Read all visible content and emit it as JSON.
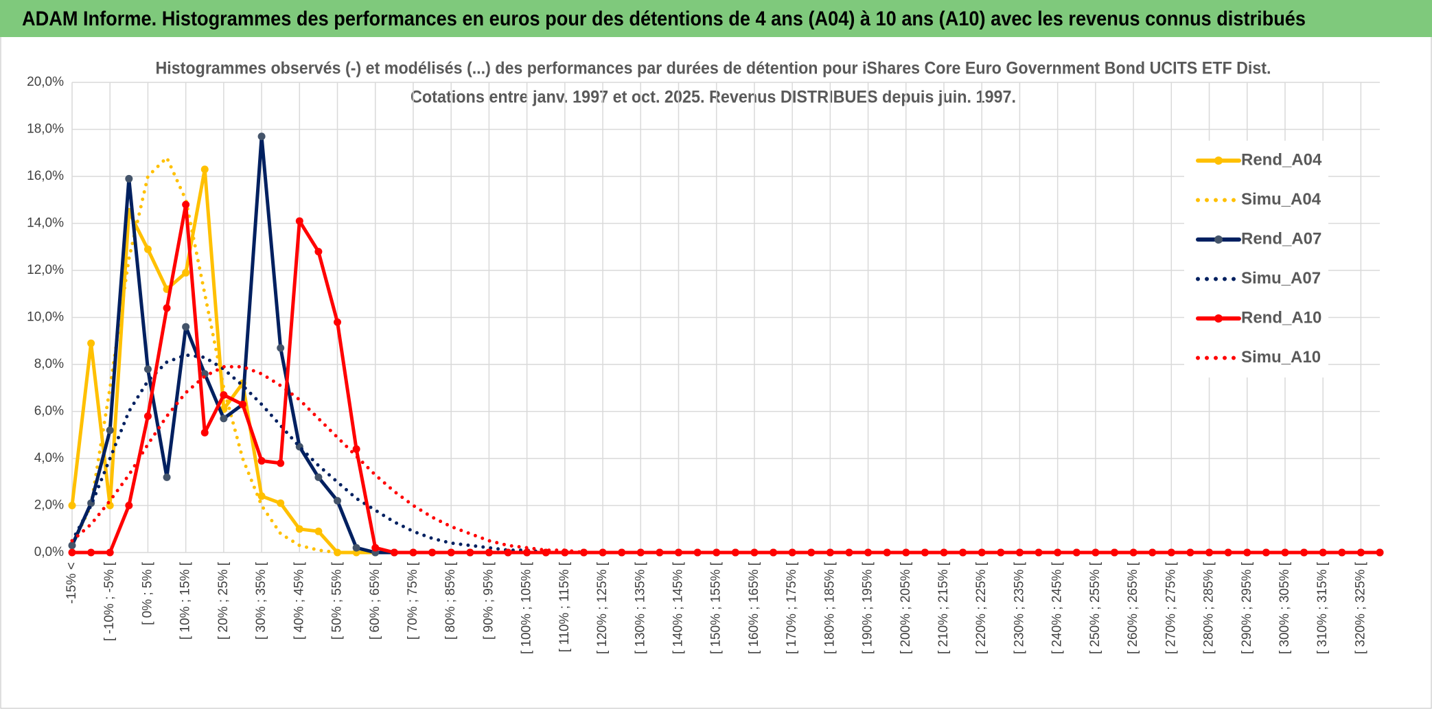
{
  "header": {
    "title": "ADAM Informe. Histogrammes des performances en euros pour des détentions de 4 ans (A04) à 10 ans (A10) avec les revenus connus distribués"
  },
  "chart_data": {
    "type": "line",
    "title": "Histogrammes observés (-) et modélisés (...) des performances par durées de détention pour iShares Core Euro Government Bond UCITS ETF Dist.",
    "subtitle": "Cotations entre janv. 1997 et oct. 2025. Revenus DISTRIBUES depuis juin. 1997.",
    "categories": [
      "-15% <",
      null,
      "[ -10% ; -5% [",
      null,
      "[ 0% ; 5% [",
      null,
      "[ 10% ; 15% [",
      null,
      "[ 20% ; 25% [",
      null,
      "[ 30% ; 35% [",
      null,
      "[ 40% ; 45% [",
      null,
      "[ 50% ; 55% [",
      null,
      "[ 60% ; 65% [",
      null,
      "[ 70% ; 75% [",
      null,
      "[ 80% ; 85% [",
      null,
      "[ 90% ; 95% [",
      null,
      "[ 100% ; 105% [",
      null,
      "[ 110% ; 115% [",
      null,
      "[ 120% ; 125% [",
      null,
      "[ 130% ; 135% [",
      null,
      "[ 140% ; 145% [",
      null,
      "[ 150% ; 155% [",
      null,
      "[ 160% ; 165% [",
      null,
      "[ 170% ; 175% [",
      null,
      "[ 180% ; 185% [",
      null,
      "[ 190% ; 195% [",
      null,
      "[ 200% ; 205% [",
      null,
      "[ 210% ; 215% [",
      null,
      "[ 220% ; 225% [",
      null,
      "[ 230% ; 235% [",
      null,
      "[ 240% ; 245% [",
      null,
      "[ 250% ; 255% [",
      null,
      "[ 260% ; 265% [",
      null,
      "[ 270% ; 275% [",
      null,
      "[ 280% ; 285% [",
      null,
      "[ 290% ; 295% [",
      null,
      "[ 300% ; 305% [",
      null,
      "[ 310% ; 315% [",
      null,
      "[ 320% ; 325% [",
      null
    ],
    "series": [
      {
        "name": "Rend_A04",
        "color": "#FFC000",
        "style": "solid",
        "markers": true,
        "values": [
          2.0,
          8.9,
          2.0,
          14.5,
          12.9,
          11.2,
          11.9,
          16.3,
          6.1,
          7.2,
          2.4,
          2.1,
          1.0,
          0.9,
          0,
          0,
          0,
          0,
          0,
          0,
          0,
          0,
          0,
          0,
          0,
          0,
          0,
          0,
          0,
          0,
          0,
          0,
          0,
          0,
          0,
          0,
          0,
          0,
          0,
          0,
          0,
          0,
          0,
          0,
          0,
          0,
          0,
          0,
          0,
          0,
          0,
          0,
          0,
          0,
          0,
          0,
          0,
          0,
          0,
          0,
          0,
          0,
          0,
          0,
          0,
          0,
          0,
          0,
          0,
          0
        ]
      },
      {
        "name": "Simu_A04",
        "color": "#FFC000",
        "style": "dotted",
        "markers": false,
        "values": [
          0.3,
          2.0,
          7.0,
          12.5,
          16.0,
          16.8,
          15.0,
          11.0,
          7.0,
          4.0,
          2.0,
          0.8,
          0.3,
          0.1,
          0,
          0,
          0,
          0,
          0,
          0,
          0,
          0,
          0,
          0,
          0,
          0,
          0,
          0,
          0,
          0,
          0,
          0,
          0,
          0,
          0,
          0,
          0,
          0,
          0,
          0,
          0,
          0,
          0,
          0,
          0,
          0,
          0,
          0,
          0,
          0,
          0,
          0,
          0,
          0,
          0,
          0,
          0,
          0,
          0,
          0,
          0,
          0,
          0,
          0,
          0,
          0,
          0,
          0,
          0,
          0
        ]
      },
      {
        "name": "Rend_A07",
        "color": "#002060",
        "style": "solid",
        "markers": true,
        "values": [
          0.3,
          2.1,
          5.2,
          15.9,
          7.8,
          3.2,
          9.6,
          7.6,
          5.7,
          6.3,
          17.7,
          8.7,
          4.5,
          3.2,
          2.2,
          0.2,
          0,
          0,
          0,
          0,
          0,
          0,
          0,
          0,
          0,
          0,
          0,
          0,
          0,
          0,
          0,
          0,
          0,
          0,
          0,
          0,
          0,
          0,
          0,
          0,
          0,
          0,
          0,
          0,
          0,
          0,
          0,
          0,
          0,
          0,
          0,
          0,
          0,
          0,
          0,
          0,
          0,
          0,
          0,
          0,
          0,
          0,
          0,
          0,
          0,
          0,
          0,
          0,
          0,
          0
        ]
      },
      {
        "name": "Simu_A07",
        "color": "#002060",
        "style": "dotted",
        "markers": false,
        "values": [
          0.5,
          2.0,
          4.0,
          6.0,
          7.3,
          8.1,
          8.4,
          8.3,
          7.8,
          7.1,
          6.3,
          5.4,
          4.5,
          3.7,
          3.0,
          2.3,
          1.8,
          1.3,
          0.9,
          0.6,
          0.4,
          0.3,
          0.2,
          0.1,
          0.1,
          0,
          0,
          0,
          0,
          0,
          0,
          0,
          0,
          0,
          0,
          0,
          0,
          0,
          0,
          0,
          0,
          0,
          0,
          0,
          0,
          0,
          0,
          0,
          0,
          0,
          0,
          0,
          0,
          0,
          0,
          0,
          0,
          0,
          0,
          0,
          0,
          0,
          0,
          0,
          0,
          0,
          0,
          0,
          0,
          0
        ]
      },
      {
        "name": "Rend_A10",
        "color": "#FF0000",
        "style": "solid",
        "markers": true,
        "values": [
          0,
          0,
          0,
          2.0,
          5.8,
          10.4,
          14.8,
          5.1,
          6.7,
          6.3,
          3.9,
          3.8,
          14.1,
          12.8,
          9.8,
          4.4,
          0.2,
          0,
          0,
          0,
          0,
          0,
          0,
          0,
          0,
          0,
          0,
          0,
          0,
          0,
          0,
          0,
          0,
          0,
          0,
          0,
          0,
          0,
          0,
          0,
          0,
          0,
          0,
          0,
          0,
          0,
          0,
          0,
          0,
          0,
          0,
          0,
          0,
          0,
          0,
          0,
          0,
          0,
          0,
          0,
          0,
          0,
          0,
          0,
          0,
          0,
          0,
          0,
          0,
          0
        ]
      },
      {
        "name": "Simu_A10",
        "color": "#FF0000",
        "style": "dotted",
        "markers": false,
        "values": [
          0.5,
          1.2,
          2.2,
          3.3,
          4.6,
          5.8,
          6.8,
          7.5,
          7.9,
          7.9,
          7.6,
          7.1,
          6.5,
          5.7,
          4.9,
          4.1,
          3.3,
          2.6,
          2.0,
          1.5,
          1.1,
          0.8,
          0.5,
          0.3,
          0.2,
          0.1,
          0.1,
          0,
          0,
          0,
          0,
          0,
          0,
          0,
          0,
          0,
          0,
          0,
          0,
          0,
          0,
          0,
          0,
          0,
          0,
          0,
          0,
          0,
          0,
          0,
          0,
          0,
          0,
          0,
          0,
          0,
          0,
          0,
          0,
          0,
          0,
          0,
          0,
          0,
          0,
          0,
          0,
          0,
          0,
          0
        ]
      }
    ],
    "ylim": [
      0,
      20
    ],
    "yticks": [
      {
        "value": 0,
        "label": "0,0%"
      },
      {
        "value": 2,
        "label": "2,0%"
      },
      {
        "value": 4,
        "label": "4,0%"
      },
      {
        "value": 6,
        "label": "6,0%"
      },
      {
        "value": 8,
        "label": "8,0%"
      },
      {
        "value": 10,
        "label": "10,0%"
      },
      {
        "value": 12,
        "label": "12,0%"
      },
      {
        "value": 14,
        "label": "14,0%"
      },
      {
        "value": 16,
        "label": "16,0%"
      },
      {
        "value": 18,
        "label": "18,0%"
      },
      {
        "value": 20,
        "label": "20,0%"
      }
    ],
    "grid": true,
    "legend": "right"
  }
}
